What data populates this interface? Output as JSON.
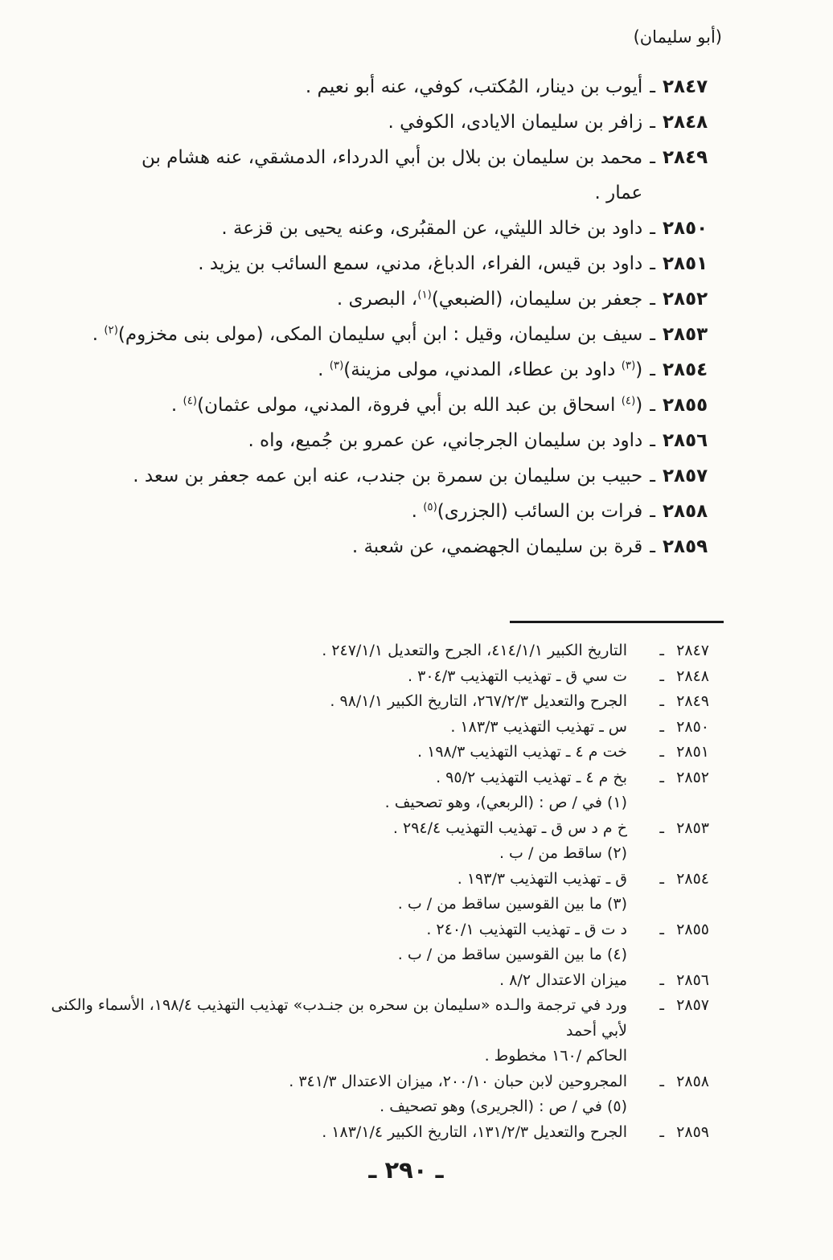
{
  "colors": {
    "page_bg": "#fcfbf7",
    "ink": "#1b1b1b"
  },
  "dash_glyph": "ـ",
  "page": {
    "header": "(أبو سليمان)",
    "page_number": "ـ ٢٩٠ ـ"
  },
  "entries": [
    {
      "num": "٢٨٤٧",
      "segments": [
        {
          "t": "أيوب بن دينار، المُكتب، كوفي، عنه أبو نعيم ."
        }
      ]
    },
    {
      "num": "٢٨٤٨",
      "segments": [
        {
          "t": "زافر بن سليمان الايادى، الكوفي ."
        }
      ]
    },
    {
      "num": "٢٨٤٩",
      "segments": [
        {
          "t": "محمد بن سليمان بن بلال بن أبي الدرداء، الدمشقي، عنه هشام بن\nعمار ."
        }
      ]
    },
    {
      "num": "٢٨٥٠",
      "segments": [
        {
          "t": "داود بن خالد الليثي، عن المقبُرى، وعنه يحيى بن قزعة ."
        }
      ]
    },
    {
      "num": "٢٨٥١",
      "segments": [
        {
          "t": "داود بن قيس، الفراء، الدباغ، مدني، سمع السائب بن يزيد ."
        }
      ]
    },
    {
      "num": "٢٨٥٢",
      "segments": [
        {
          "t": "جعفر بن سليمان، (الضبعي)"
        },
        {
          "t": "(١)",
          "sup": true
        },
        {
          "t": "، البصرى ."
        }
      ]
    },
    {
      "num": "٢٨٥٣",
      "segments": [
        {
          "t": "سيف بن سليمان، وقيل : ابن أبي سليمان المكى، (مولى بنى مخزوم)"
        },
        {
          "t": "(٢)",
          "sup": true
        },
        {
          "t": " ."
        }
      ]
    },
    {
      "num": "٢٨٥٤",
      "segments": [
        {
          "t": "("
        },
        {
          "t": "(٣)",
          "sup": true
        },
        {
          "t": " داود بن عطاء، المدني، مولى مزينة)"
        },
        {
          "t": "(٣)",
          "sup": true
        },
        {
          "t": " ."
        }
      ]
    },
    {
      "num": "٢٨٥٥",
      "segments": [
        {
          "t": "("
        },
        {
          "t": "(٤)",
          "sup": true
        },
        {
          "t": " اسحاق بن عبد الله بن أبي فروة، المدني، مولى عثمان)"
        },
        {
          "t": "(٤)",
          "sup": true
        },
        {
          "t": " ."
        }
      ]
    },
    {
      "num": "٢٨٥٦",
      "segments": [
        {
          "t": "داود بن سليمان الجرجاني، عن عمرو بن جُميع، واه ."
        }
      ]
    },
    {
      "num": "٢٨٥٧",
      "segments": [
        {
          "t": "حبيب بن سليمان بن سمرة بن جندب، عنه ابن عمه جعفر بن سعد ."
        }
      ]
    },
    {
      "num": "٢٨٥٨",
      "segments": [
        {
          "t": "فرات بن السائب (الجزرى)"
        },
        {
          "t": "(٥)",
          "sup": true
        },
        {
          "t": " ."
        }
      ]
    },
    {
      "num": "٢٨٥٩",
      "segments": [
        {
          "t": "قرة بن سليمان الجهضمي، عن شعبة ."
        }
      ]
    }
  ],
  "footnotes": [
    {
      "num": "٢٨٤٧",
      "text": "التاريخ الكبير ٤١٤/١/١، الجرح والتعديل ٢٤٧/١/١ ."
    },
    {
      "num": "٢٨٤٨",
      "text": "ت سي ق ـ تهذيب التهذيب ٣٠٤/٣ ."
    },
    {
      "num": "٢٨٤٩",
      "text": "الجرح والتعديل ٢٦٧/٢/٣، التاريخ الكبير ٩٨/١/١ ."
    },
    {
      "num": "٢٨٥٠",
      "text": "س ـ تهذيب التهذيب ١٨٣/٣ ."
    },
    {
      "num": "٢٨٥١",
      "text": "خت م ٤ ـ تهذيب التهذيب ١٩٨/٣ ."
    },
    {
      "num": "٢٨٥٢",
      "text": "بخ م ٤ ـ تهذيب التهذيب ٩٥/٢ ."
    },
    {
      "num": "",
      "text": "(١) في / ص : (الربعي)، وهو تصحيف ."
    },
    {
      "num": "٢٨٥٣",
      "text": "خ م د س ق ـ تهذيب التهذيب ٢٩٤/٤ ."
    },
    {
      "num": "",
      "text": "(٢) ساقط من / ب ."
    },
    {
      "num": "٢٨٥٤",
      "text": "ق ـ تهذيب التهذيب ١٩٣/٣ ."
    },
    {
      "num": "",
      "text": "(٣) ما بين القوسين ساقط من / ب ."
    },
    {
      "num": "٢٨٥٥",
      "text": "د ت ق ـ تهذيب التهذيب ٢٤٠/١ ."
    },
    {
      "num": "",
      "text": "(٤) ما بين القوسين ساقط من / ب ."
    },
    {
      "num": "٢٨٥٦",
      "text": "ميزان الاعتدال ٨/٢ ."
    },
    {
      "num": "٢٨٥٧",
      "text": "ورد في ترجمة والـده «سليمان بن سحره بن جنـدب» تهذيب التهذيب ١٩٨/٤، الأسماء والكنى لأبي أحمد\nالحاكم /١٦٠ مخطوط ."
    },
    {
      "num": "٢٨٥٨",
      "text": "المجروحين لابن حبان ٢٠٠/١٠، ميزان الاعتدال ٣٤١/٣ ."
    },
    {
      "num": "",
      "text": "(٥) في / ص : (الجريرى) وهو تصحيف ."
    },
    {
      "num": "٢٨٥٩",
      "text": "الجرح والتعديل ١٣١/٢/٣، التاريخ الكبير ١٨٣/١/٤ ."
    }
  ]
}
